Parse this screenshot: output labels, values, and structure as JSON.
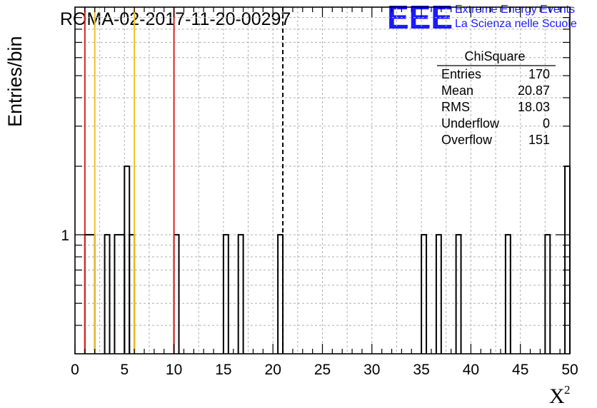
{
  "header": {
    "run_title": "ROMA-02-2017-11-20-00297",
    "logo_text": "EEE",
    "org_line1": "Extreme Energy Events",
    "org_line2": "La Scienza nelle Scuole"
  },
  "stats_box": {
    "title": "ChiSquare",
    "rows": [
      {
        "label": "Entries",
        "value": "170"
      },
      {
        "label": "Mean",
        "value": "20.87"
      },
      {
        "label": "RMS",
        "value": "18.03"
      },
      {
        "label": "Underflow",
        "value": "0"
      },
      {
        "label": "Overflow",
        "value": "151"
      }
    ]
  },
  "chart_data": {
    "type": "bar",
    "histogram": true,
    "title": "ROMA-02-2017-11-20-00297",
    "xlabel": "X",
    "xlabel_superscript": "2",
    "ylabel": "Entries/bin",
    "y_scale": "log",
    "xlim": [
      0,
      50
    ],
    "ylim": [
      0.3,
      10
    ],
    "bin_width": 0.5,
    "x_ticks": [
      "0",
      "5",
      "10",
      "15",
      "20",
      "25",
      "30",
      "35",
      "40",
      "45",
      "50"
    ],
    "y_ticks": [
      "1"
    ],
    "grid": true,
    "bins": [
      {
        "x0": 1.0,
        "x1": 2.0,
        "count": 1
      },
      {
        "x0": 3.0,
        "x1": 3.5,
        "count": 1
      },
      {
        "x0": 4.0,
        "x1": 5.0,
        "count": 1
      },
      {
        "x0": 5.0,
        "x1": 5.5,
        "count": 2
      },
      {
        "x0": 5.5,
        "x1": 6.0,
        "count": 1
      },
      {
        "x0": 10.0,
        "x1": 10.5,
        "count": 1
      },
      {
        "x0": 15.0,
        "x1": 15.5,
        "count": 1
      },
      {
        "x0": 16.5,
        "x1": 17.0,
        "count": 1
      },
      {
        "x0": 20.5,
        "x1": 21.0,
        "count": 1
      },
      {
        "x0": 35.0,
        "x1": 35.5,
        "count": 1
      },
      {
        "x0": 36.5,
        "x1": 37.0,
        "count": 1
      },
      {
        "x0": 38.5,
        "x1": 39.0,
        "count": 1
      },
      {
        "x0": 43.5,
        "x1": 44.0,
        "count": 1
      },
      {
        "x0": 47.5,
        "x1": 48.0,
        "count": 1
      },
      {
        "x0": 49.5,
        "x1": 50.0,
        "count": 2
      }
    ],
    "vertical_lines": [
      {
        "x": 1.0,
        "color": "#dd2222",
        "style": "solid"
      },
      {
        "x": 2.0,
        "color": "#f0c020",
        "style": "solid"
      },
      {
        "x": 6.0,
        "color": "#f0c020",
        "style": "solid"
      },
      {
        "x": 10.0,
        "color": "#dd2222",
        "style": "solid"
      },
      {
        "x": 21.0,
        "color": "#000000",
        "style": "dashed"
      }
    ]
  }
}
